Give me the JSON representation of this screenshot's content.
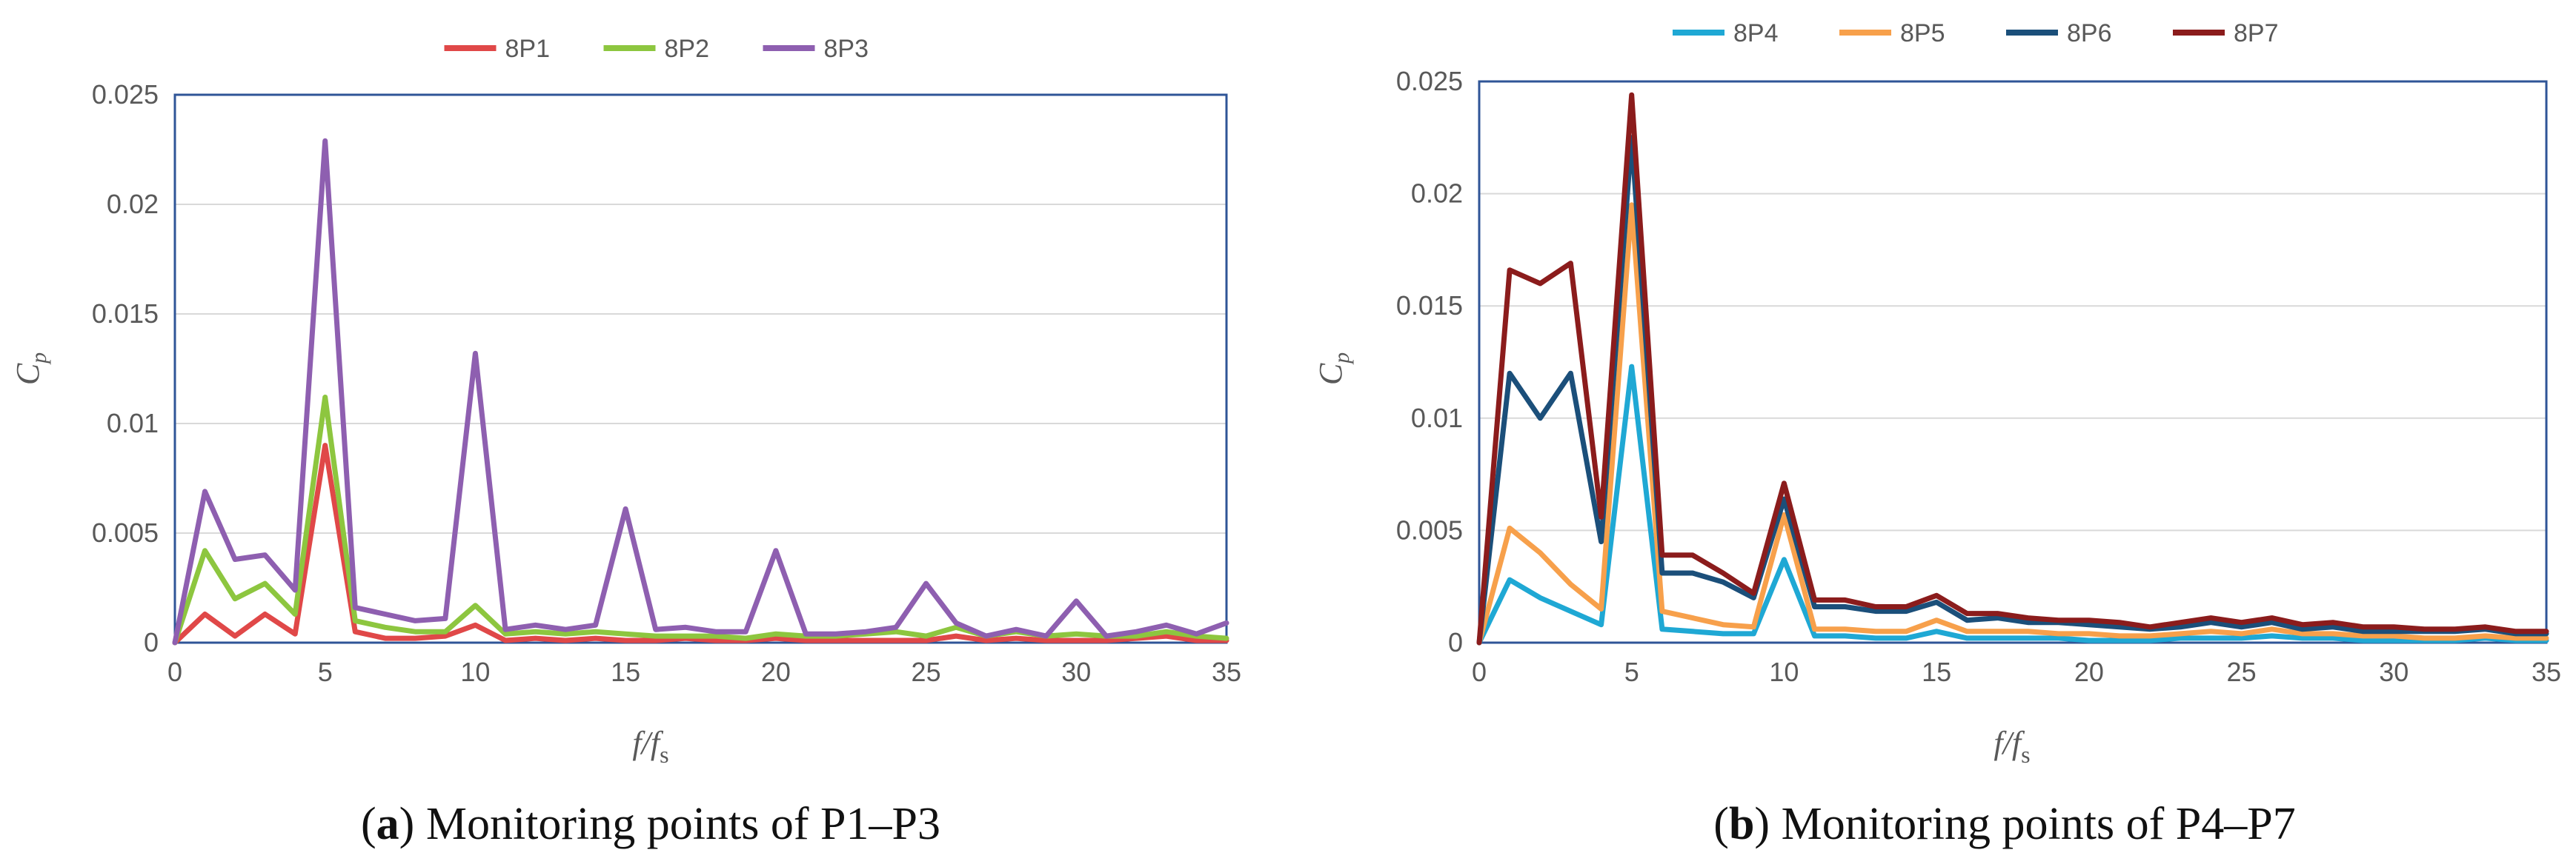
{
  "chart_data": [
    {
      "id": "a",
      "type": "line",
      "caption_letter": "a",
      "caption_rest": " Monitoring points of P1–P3",
      "ylabel_main": "C",
      "ylabel_sub": "p",
      "xlabel_main": "f/f",
      "xlabel_sub": "s",
      "xlim": [
        0,
        35
      ],
      "ylim": [
        0,
        0.025
      ],
      "xticks": [
        "0",
        "5",
        "10",
        "15",
        "20",
        "25",
        "30",
        "35"
      ],
      "xtick_values": [
        0,
        5,
        10,
        15,
        20,
        25,
        30,
        35
      ],
      "yticks": [
        "0",
        "0.005",
        "0.01",
        "0.015",
        "0.02",
        "0.025"
      ],
      "ytick_values": [
        0,
        0.005,
        0.01,
        0.015,
        0.02,
        0.025
      ],
      "legend_position": "top-center",
      "series": [
        {
          "name": "8P1",
          "color": "#e04848",
          "values": [
            0,
            0.0013,
            0.0003,
            0.0013,
            0.0004,
            0.009,
            0.0005,
            0.0002,
            0.0002,
            0.0003,
            0.0008,
            0.0001,
            0.0002,
            0.0001,
            0.0002,
            0.0001,
            0.0001,
            0.0002,
            0.0001,
            0.0001,
            0.0002,
            0.0001,
            0.0001,
            0.0001,
            0.0001,
            0.0001,
            0.0003,
            0.0001,
            0.0002,
            0.0001,
            0.0001,
            0.0001,
            0.0002,
            0.0003,
            0.0001,
            0.0001
          ]
        },
        {
          "name": "8P2",
          "color": "#8dc63f",
          "values": [
            0,
            0.0042,
            0.002,
            0.0027,
            0.0013,
            0.0112,
            0.001,
            0.0007,
            0.0005,
            0.0005,
            0.0017,
            0.0004,
            0.0005,
            0.0004,
            0.0005,
            0.0004,
            0.0003,
            0.0003,
            0.0003,
            0.0002,
            0.0004,
            0.0003,
            0.0003,
            0.0004,
            0.0005,
            0.0003,
            0.0007,
            0.0003,
            0.0005,
            0.0003,
            0.0004,
            0.0003,
            0.0003,
            0.0005,
            0.0003,
            0.0002
          ]
        },
        {
          "name": "8P3",
          "color": "#8e5fb0",
          "values": [
            0,
            0.0069,
            0.0038,
            0.004,
            0.0024,
            0.0229,
            0.0016,
            0.0013,
            0.001,
            0.0011,
            0.0132,
            0.0006,
            0.0008,
            0.0006,
            0.0008,
            0.0061,
            0.0006,
            0.0007,
            0.0005,
            0.0005,
            0.0042,
            0.0004,
            0.0004,
            0.0005,
            0.0007,
            0.0027,
            0.0009,
            0.0003,
            0.0006,
            0.0003,
            0.0019,
            0.0003,
            0.0005,
            0.0008,
            0.0004,
            0.0009
          ]
        }
      ]
    },
    {
      "id": "b",
      "type": "line",
      "caption_letter": "b",
      "caption_rest": " Monitoring points of P4–P7",
      "ylabel_main": "C",
      "ylabel_sub": "p",
      "xlabel_main": "f/f",
      "xlabel_sub": "s",
      "xlim": [
        0,
        35
      ],
      "ylim": [
        0,
        0.025
      ],
      "xticks": [
        "0",
        "5",
        "10",
        "15",
        "20",
        "25",
        "30",
        "35"
      ],
      "xtick_values": [
        0,
        5,
        10,
        15,
        20,
        25,
        30,
        35
      ],
      "yticks": [
        "0",
        "0.005",
        "0.01",
        "0.015",
        "0.02",
        "0.025"
      ],
      "ytick_values": [
        0,
        0.005,
        0.01,
        0.015,
        0.02,
        0.025
      ],
      "legend_position": "top-center",
      "series": [
        {
          "name": "8P4",
          "color": "#1fa8d4",
          "values": [
            0,
            0.0028,
            0.002,
            0.0014,
            0.0008,
            0.0123,
            0.0006,
            0.0005,
            0.0004,
            0.0004,
            0.0037,
            0.0003,
            0.0003,
            0.0002,
            0.0002,
            0.0005,
            0.0002,
            0.0002,
            0.0002,
            0.0002,
            0.0001,
            0.0001,
            0.0001,
            0.0002,
            0.0002,
            0.0002,
            0.0003,
            0.0002,
            0.0002,
            0.0001,
            0.0001,
            0.0001,
            0.0001,
            0.0002,
            0.0001,
            0.0001
          ]
        },
        {
          "name": "8P5",
          "color": "#f7a04b",
          "values": [
            0,
            0.0051,
            0.004,
            0.0026,
            0.0015,
            0.0195,
            0.0014,
            0.0011,
            0.0008,
            0.0007,
            0.0057,
            0.0006,
            0.0006,
            0.0005,
            0.0005,
            0.001,
            0.0005,
            0.0005,
            0.0005,
            0.0004,
            0.0004,
            0.0003,
            0.0003,
            0.0004,
            0.0005,
            0.0004,
            0.0006,
            0.0004,
            0.0004,
            0.0003,
            0.0003,
            0.0002,
            0.0002,
            0.0003,
            0.0002,
            0.0002
          ]
        },
        {
          "name": "8P6",
          "color": "#1b4f7a",
          "values": [
            0,
            0.012,
            0.01,
            0.012,
            0.0045,
            0.0225,
            0.0031,
            0.0031,
            0.0027,
            0.002,
            0.0064,
            0.0016,
            0.0016,
            0.0014,
            0.0014,
            0.0018,
            0.001,
            0.0011,
            0.0009,
            0.0009,
            0.0008,
            0.0007,
            0.0006,
            0.0007,
            0.0009,
            0.0007,
            0.0009,
            0.0006,
            0.0007,
            0.0005,
            0.0005,
            0.0005,
            0.0005,
            0.0006,
            0.0004,
            0.0004
          ]
        },
        {
          "name": "8P7",
          "color": "#8b1c1c",
          "values": [
            0,
            0.0166,
            0.016,
            0.0169,
            0.0056,
            0.0244,
            0.0039,
            0.0039,
            0.0031,
            0.0022,
            0.0071,
            0.0019,
            0.0019,
            0.0016,
            0.0016,
            0.0021,
            0.0013,
            0.0013,
            0.0011,
            0.001,
            0.001,
            0.0009,
            0.0007,
            0.0009,
            0.0011,
            0.0009,
            0.0011,
            0.0008,
            0.0009,
            0.0007,
            0.0007,
            0.0006,
            0.0006,
            0.0007,
            0.0005,
            0.0005
          ]
        }
      ]
    }
  ]
}
